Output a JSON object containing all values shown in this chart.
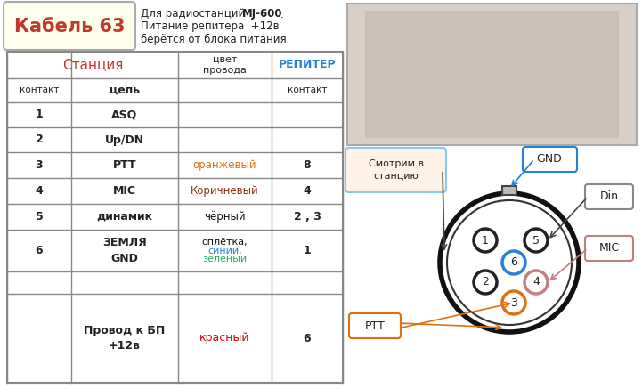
{
  "title_text": "Кабель 63",
  "title_color": "#c0392b",
  "title_bg": "#ffffee",
  "title_border": "#aaaaaa",
  "desc_bold": "MJ-600",
  "table_header_station": "Станция",
  "table_header_color": "цвет\nпровода",
  "table_header_repeater": "РЕПИТЕР",
  "table_header_station_color": "#c0392b",
  "table_header_repeater_color": "#2980d9",
  "col1_header": "контакт",
  "col2_header": "цепь",
  "col4_header": "контакт",
  "smotrim_text": "Смотрим в\nстанцию",
  "bg_color": "#ffffff",
  "border_color": "#888888",
  "photo_border": "#aaaaaa",
  "photo_bg": "#d8d0c8"
}
